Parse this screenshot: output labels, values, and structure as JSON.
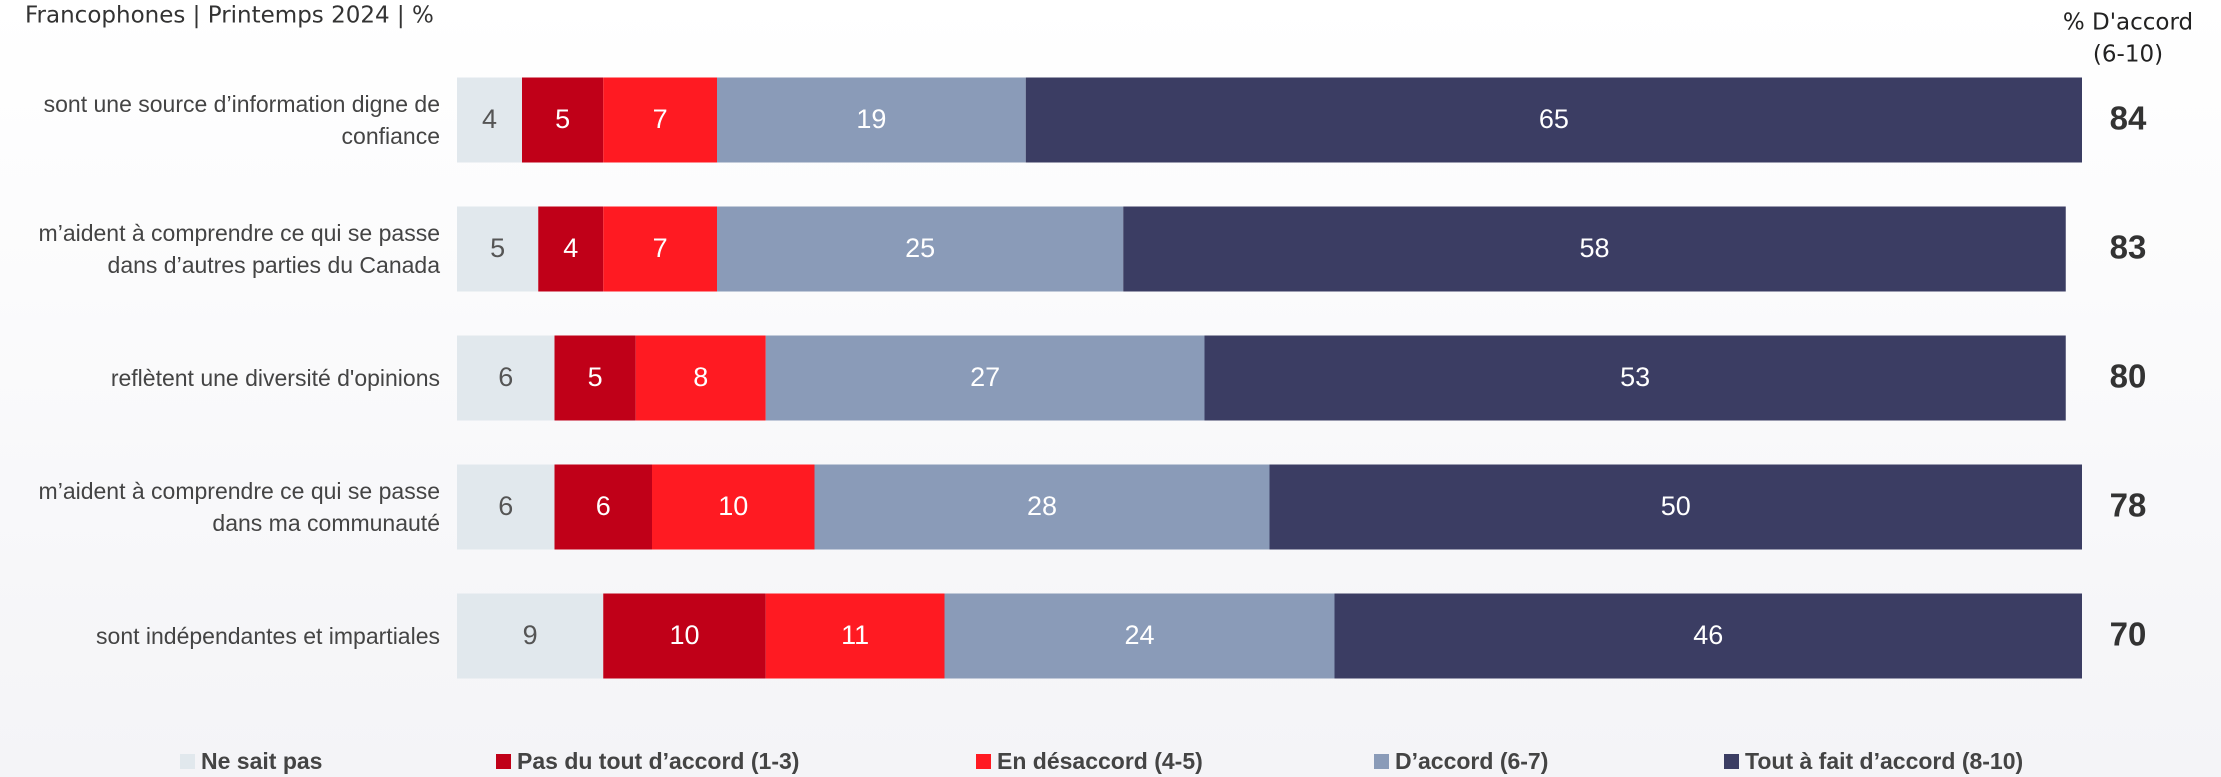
{
  "chart_data": {
    "type": "stacked-bar-horizontal",
    "subtitle": "Francophones | Printemps 2024 | %",
    "categories": [
      "sont une source d’information digne de confiance",
      "m’aident à comprendre ce qui se passe dans d’autres parties du Canada",
      "reflètent une diversité d'opinions",
      "m’aident à comprendre ce qui se passe dans ma communauté",
      "sont indépendantes et impartiales"
    ],
    "series": [
      {
        "name": "Ne sait pas",
        "color": "#e1e8ed",
        "values": [
          4,
          5,
          6,
          6,
          9
        ]
      },
      {
        "name": "Pas du tout d’accord (1-3)",
        "color": "#c00018",
        "values": [
          5,
          4,
          5,
          6,
          10
        ]
      },
      {
        "name": "En désaccord (4-5)",
        "color": "#ff1a22",
        "values": [
          7,
          7,
          8,
          10,
          11
        ]
      },
      {
        "name": "D’accord (6-7)",
        "color": "#8a9bb8",
        "values": [
          19,
          25,
          27,
          28,
          24
        ]
      },
      {
        "name": "Tout à fait d’accord (8-10)",
        "color": "#3b3d63",
        "values": [
          65,
          58,
          53,
          50,
          46
        ]
      }
    ],
    "xlim": [
      0,
      100
    ],
    "net_header": [
      "% D'accord",
      "(6-10)"
    ],
    "net_values": [
      84,
      83,
      80,
      78,
      70
    ],
    "legend": "bottom"
  }
}
